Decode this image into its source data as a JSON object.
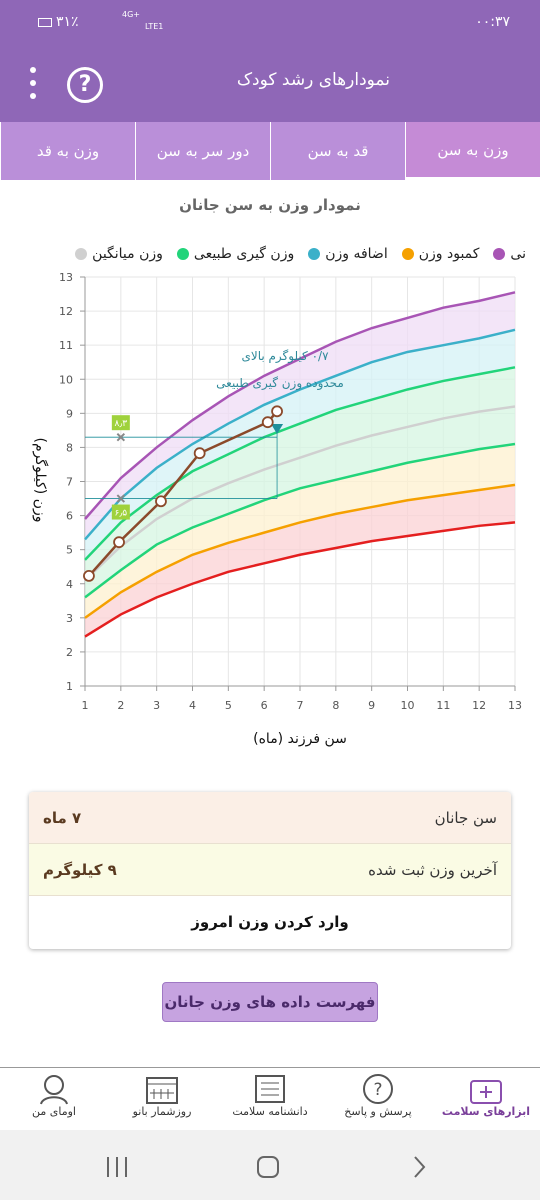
{
  "status_bar": {
    "time": "۰۰:۳۷",
    "battery": "۳۱٪",
    "network": "4G+",
    "sim": "LTE1"
  },
  "app_bar": {
    "title": "نمودارهای رشد کودک",
    "help": "?"
  },
  "tabs": [
    "وزن به سن",
    "قد به سن",
    "دور سر به سن",
    "وزن به قد"
  ],
  "chart_data": {
    "type": "line",
    "title": "نمودار وزن به سن جانان",
    "legend": [
      {
        "name": "نی",
        "color": "#a855b5"
      },
      {
        "name": "کمبود وزن",
        "color": "#f5a000"
      },
      {
        "name": "اضافه وزن",
        "color": "#3bb0c9"
      },
      {
        "name": "وزن گیری طبیعی",
        "color": "#22d47a"
      },
      {
        "name": "وزن میانگین",
        "color": "#d0d0d0"
      }
    ],
    "x_label": "سن فرزند (ماه)",
    "y_label": "وزن (کیلوگرم)",
    "xlim": [
      1,
      13
    ],
    "ylim": [
      1,
      13
    ],
    "xticks": [
      1,
      2,
      3,
      4,
      5,
      6,
      7,
      8,
      9,
      10,
      11,
      12,
      13
    ],
    "yticks": [
      1,
      2,
      3,
      4,
      5,
      6,
      7,
      8,
      9,
      10,
      11,
      12,
      13
    ],
    "grid": true,
    "x": [
      1,
      2,
      3,
      4,
      5,
      6,
      7,
      8,
      9,
      10,
      11,
      12,
      13
    ],
    "series": [
      {
        "color": "#e41f1f",
        "values": [
          2.45,
          3.1,
          3.6,
          4.0,
          4.35,
          4.6,
          4.85,
          5.05,
          5.25,
          5.4,
          5.55,
          5.7,
          5.8
        ]
      },
      {
        "color": "#f5a000",
        "band": "#fbd2d4",
        "values": [
          3.0,
          3.75,
          4.35,
          4.85,
          5.2,
          5.5,
          5.8,
          6.05,
          6.25,
          6.45,
          6.6,
          6.75,
          6.9
        ]
      },
      {
        "color": "#22d47a",
        "band": "#fdf0cf",
        "values": [
          3.6,
          4.4,
          5.15,
          5.65,
          6.05,
          6.45,
          6.8,
          7.05,
          7.3,
          7.55,
          7.75,
          7.95,
          8.1
        ]
      },
      {
        "color": "#d0d0d0",
        "band": "#d6f5e2",
        "values": [
          4.1,
          5.1,
          5.9,
          6.5,
          6.95,
          7.35,
          7.7,
          8.05,
          8.35,
          8.6,
          8.85,
          9.05,
          9.2
        ]
      },
      {
        "color": "#22d47a",
        "band": "#d6f5e2",
        "values": [
          4.7,
          5.8,
          6.6,
          7.3,
          7.8,
          8.3,
          8.7,
          9.1,
          9.4,
          9.7,
          9.95,
          10.15,
          10.35
        ]
      },
      {
        "color": "#3bb0c9",
        "band": "#d4f1f6",
        "values": [
          5.3,
          6.5,
          7.4,
          8.1,
          8.7,
          9.25,
          9.7,
          10.1,
          10.5,
          10.8,
          11.0,
          11.2,
          11.45
        ]
      },
      {
        "color": "#a855b5",
        "band": "#efdcf6",
        "values": [
          5.9,
          7.1,
          8.0,
          8.8,
          9.5,
          10.1,
          10.6,
          11.1,
          11.5,
          11.8,
          12.1,
          12.3,
          12.55
        ]
      }
    ],
    "child": {
      "color": "#8b4a2b",
      "x": [
        1.11,
        1.95,
        3.12,
        4.2,
        6.1,
        6.36
      ],
      "values": [
        4.23,
        5.22,
        6.42,
        7.83,
        8.74,
        9.06
      ]
    },
    "markers": [
      {
        "x": 2,
        "y": 8.3,
        "label": "۸٫۳"
      },
      {
        "x": 2,
        "y": 6.5,
        "label": "۶٫۵"
      }
    ],
    "target": {
      "x": 6.36,
      "y": 8.54,
      "color": "#1f8f9a"
    },
    "annotation": [
      "۰/۷ کیلوگرم بالای",
      "محدوده وزن گیری طبیعی"
    ]
  },
  "info": [
    {
      "label": "سن جانان",
      "value": "۷ ماه"
    },
    {
      "label": "آخرین وزن ثبت شده",
      "value": "۹ کیلوگرم"
    }
  ],
  "enter_button": "وارد کردن وزن امروز",
  "list_button": "فهرست داده های وزن جانان",
  "bottom_nav": [
    "ابزارهای سلامت",
    "پرسش و پاسخ",
    "دانشنامه سلامت",
    "روزشمار بانو",
    "اومای من"
  ]
}
